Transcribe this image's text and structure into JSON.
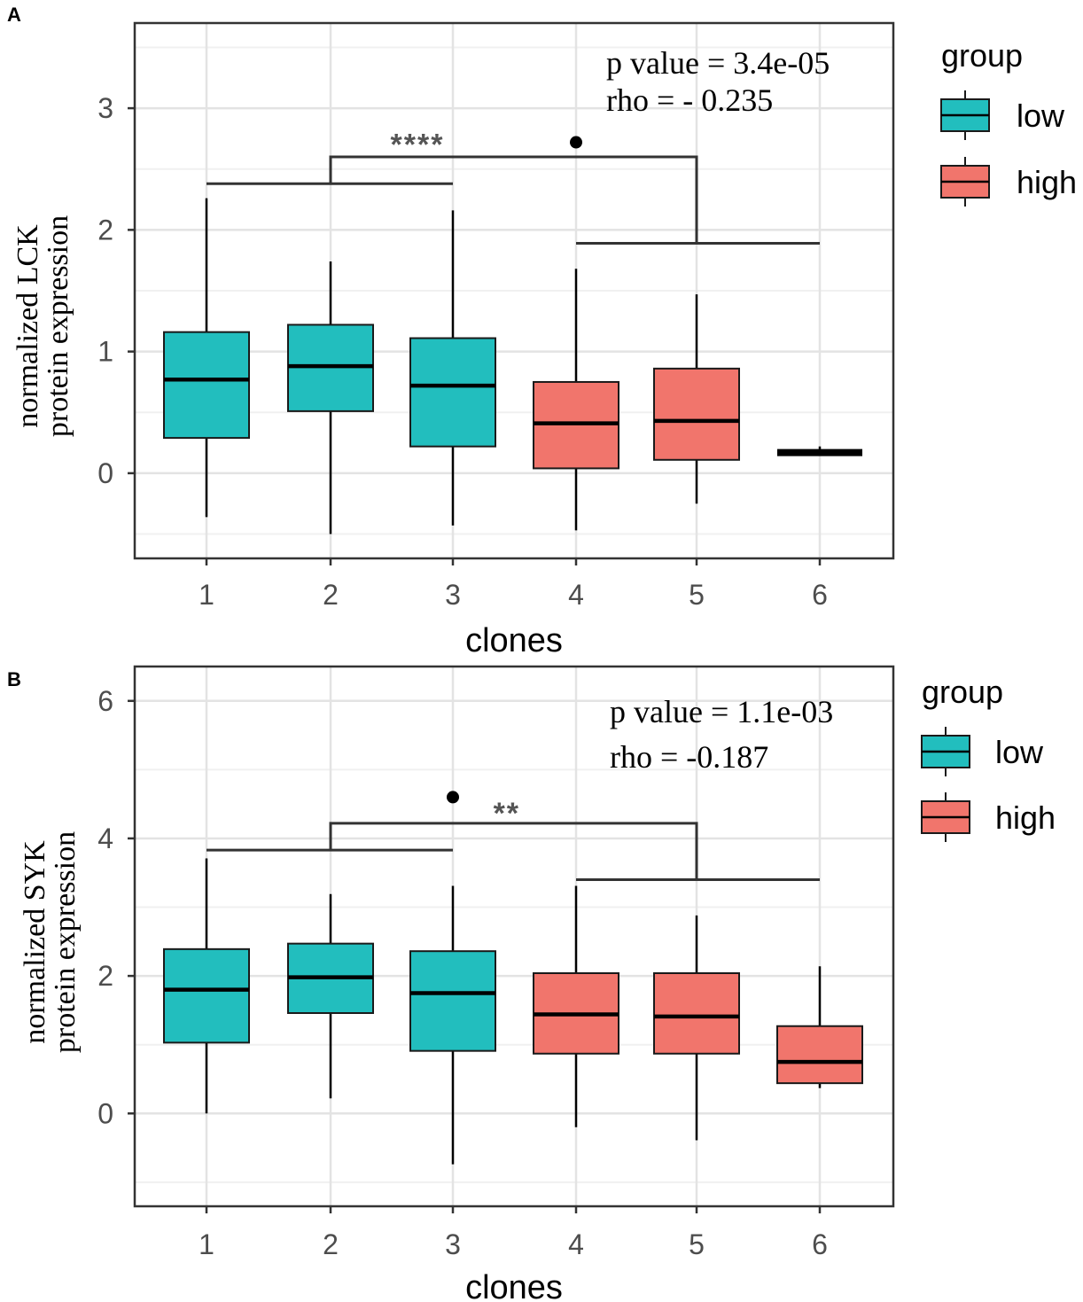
{
  "chart_data": [
    {
      "panel": "A",
      "type": "box",
      "xlabel": "clones",
      "ylabel_lines": [
        "normalized LCK",
        "protein expression"
      ],
      "categories": [
        "1",
        "2",
        "3",
        "4",
        "5",
        "6"
      ],
      "ylim": [
        -0.7,
        3.7
      ],
      "yticks": [
        0,
        1,
        2,
        3
      ],
      "ytick_labels": [
        "0",
        "1",
        "2",
        "3"
      ],
      "groups": [
        "low",
        "low",
        "low",
        "high",
        "high",
        "high"
      ],
      "boxes": [
        {
          "clone": "1",
          "group": "low",
          "min": -0.36,
          "q1": 0.29,
          "median": 0.77,
          "q3": 1.16,
          "max": 2.26
        },
        {
          "clone": "2",
          "group": "low",
          "min": -0.5,
          "q1": 0.51,
          "median": 0.88,
          "q3": 1.22,
          "max": 1.74
        },
        {
          "clone": "3",
          "group": "low",
          "min": -0.43,
          "q1": 0.22,
          "median": 0.72,
          "q3": 1.11,
          "max": 2.16
        },
        {
          "clone": "4",
          "group": "high",
          "min": -0.47,
          "q1": 0.04,
          "median": 0.41,
          "q3": 0.75,
          "max": 1.68
        },
        {
          "clone": "5",
          "group": "high",
          "min": -0.25,
          "q1": 0.11,
          "median": 0.43,
          "q3": 0.86,
          "max": 1.47
        },
        {
          "clone": "6",
          "group": "high",
          "min": 0.17,
          "q1": 0.17,
          "median": 0.17,
          "q3": 0.17,
          "max": 0.22
        }
      ],
      "outliers": [
        {
          "clone": "4",
          "value": 2.72
        }
      ],
      "bracket": {
        "left_from": "1",
        "left_to": "3",
        "left_y": 2.38,
        "right_from": "4",
        "right_to": "6",
        "right_y": 1.89,
        "top_y": 2.6,
        "top_left": "2",
        "top_right": "5",
        "label": "****",
        "label_x": 2.7,
        "label_y": 2.78
      },
      "stats": {
        "p_value": "p value = 3.4e-05",
        "rho": "rho  = - 0.235"
      },
      "legend": {
        "title": "group",
        "items": [
          {
            "label": "low",
            "color": "#22BEBE"
          },
          {
            "label": "high",
            "color": "#F1756C"
          }
        ]
      }
    },
    {
      "panel": "B",
      "type": "box",
      "xlabel": "clones",
      "ylabel_lines": [
        "normalized SYK",
        "protein expression"
      ],
      "categories": [
        "1",
        "2",
        "3",
        "4",
        "5",
        "6"
      ],
      "ylim": [
        -1.35,
        6.5
      ],
      "yticks": [
        0,
        2,
        4,
        6
      ],
      "ytick_labels": [
        "0",
        "2",
        "4",
        "6"
      ],
      "groups": [
        "low",
        "low",
        "low",
        "high",
        "high",
        "high"
      ],
      "boxes": [
        {
          "clone": "1",
          "group": "low",
          "min": 0.0,
          "q1": 1.03,
          "median": 1.8,
          "q3": 2.39,
          "max": 3.71
        },
        {
          "clone": "2",
          "group": "low",
          "min": 0.22,
          "q1": 1.46,
          "median": 1.98,
          "q3": 2.47,
          "max": 3.19
        },
        {
          "clone": "3",
          "group": "low",
          "min": -0.74,
          "q1": 0.91,
          "median": 1.75,
          "q3": 2.36,
          "max": 3.31
        },
        {
          "clone": "4",
          "group": "high",
          "min": -0.2,
          "q1": 0.87,
          "median": 1.44,
          "q3": 2.04,
          "max": 3.31
        },
        {
          "clone": "5",
          "group": "high",
          "min": -0.39,
          "q1": 0.87,
          "median": 1.41,
          "q3": 2.04,
          "max": 2.88
        },
        {
          "clone": "6",
          "group": "high",
          "min": 0.37,
          "q1": 0.44,
          "median": 0.75,
          "q3": 1.27,
          "max": 2.14
        }
      ],
      "outliers": [
        {
          "clone": "3",
          "value": 4.6
        }
      ],
      "bracket": {
        "left_from": "1",
        "left_to": "3",
        "left_y": 3.83,
        "right_from": "4",
        "right_to": "6",
        "right_y": 3.4,
        "top_y": 4.22,
        "top_left": "2",
        "top_right": "5",
        "label": "**",
        "label_x": 3.42,
        "label_y": 4.5
      },
      "stats": {
        "p_value": "p value = 1.1e-03",
        "rho": "rho = -0.187"
      },
      "legend": {
        "title": "group",
        "items": [
          {
            "label": "low",
            "color": "#22BEBE"
          },
          {
            "label": "high",
            "color": "#F1756C"
          }
        ]
      }
    }
  ]
}
